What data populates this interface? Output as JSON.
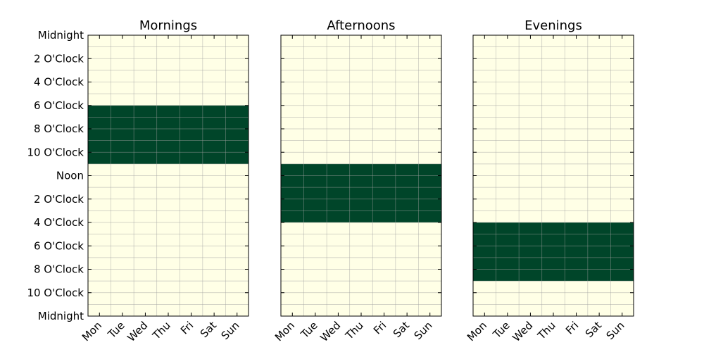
{
  "chart_data": {
    "type": "heatmap",
    "days": [
      "Mon",
      "Tue",
      "Wed",
      "Thu",
      "Fri",
      "Sat",
      "Sun"
    ],
    "y_tick_labels": [
      "Midnight",
      "2 O'Clock",
      "4 O'Clock",
      "6 O'Clock",
      "8 O'Clock",
      "10 O'Clock",
      "Noon",
      "2 O'Clock",
      "4 O'Clock",
      "6 O'Clock",
      "8 O'Clock",
      "10 O'Clock",
      "Midnight"
    ],
    "y_tick_hours": [
      0,
      2,
      4,
      6,
      8,
      10,
      12,
      14,
      16,
      18,
      20,
      22,
      24
    ],
    "ylim": [
      0,
      24
    ],
    "grid": true,
    "colors": {
      "background": "#ffffe6",
      "filled": "#004529",
      "grid": "#a0a0a0",
      "axis": "#000000"
    },
    "panels": [
      {
        "title": "Mornings",
        "start_hour": 6,
        "end_hour": 11
      },
      {
        "title": "Afternoons",
        "start_hour": 11,
        "end_hour": 16
      },
      {
        "title": "Evenings",
        "start_hour": 16,
        "end_hour": 21
      }
    ]
  }
}
